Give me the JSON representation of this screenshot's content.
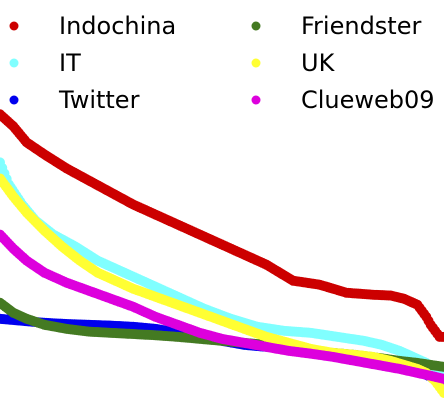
{
  "chart_data": {
    "type": "scatter",
    "title": "",
    "xlabel": "",
    "ylabel": "",
    "grid": false,
    "legend_placement": "top",
    "xlim": [
      0,
      100
    ],
    "ylim": [
      0,
      100
    ],
    "series": [
      {
        "name": "Indochina",
        "color": "#cc0000",
        "points": [
          [
            0,
            71.5
          ],
          [
            3,
            68.5
          ],
          [
            6,
            64.5
          ],
          [
            10,
            61.5
          ],
          [
            15,
            58
          ],
          [
            20,
            55
          ],
          [
            25,
            52
          ],
          [
            30,
            49
          ],
          [
            36,
            46
          ],
          [
            42,
            43
          ],
          [
            48,
            40
          ],
          [
            54,
            37
          ],
          [
            60,
            34
          ],
          [
            66,
            30
          ],
          [
            72,
            29
          ],
          [
            78,
            27
          ],
          [
            84,
            26.5
          ],
          [
            88,
            26.3
          ],
          [
            91,
            25.5
          ],
          [
            94,
            24
          ],
          [
            96,
            21
          ],
          [
            97,
            19
          ],
          [
            98,
            17.5
          ],
          [
            99,
            16
          ],
          [
            100,
            16
          ]
        ]
      },
      {
        "name": "IT",
        "color": "#80ffff",
        "points": [
          [
            0,
            59.5
          ],
          [
            2,
            54
          ],
          [
            5,
            49
          ],
          [
            8,
            45
          ],
          [
            12,
            41.5
          ],
          [
            17,
            38.5
          ],
          [
            22,
            35
          ],
          [
            28,
            32
          ],
          [
            34,
            29
          ],
          [
            40,
            26
          ],
          [
            46,
            23
          ],
          [
            52,
            20.5
          ],
          [
            58,
            18.5
          ],
          [
            64,
            17.5
          ],
          [
            70,
            17
          ],
          [
            76,
            16
          ],
          [
            82,
            15
          ],
          [
            86,
            14
          ],
          [
            90,
            12.5
          ],
          [
            93,
            11
          ],
          [
            96,
            9.5
          ],
          [
            98,
            8
          ],
          [
            100,
            7
          ]
        ]
      },
      {
        "name": "Twitter",
        "color": "#0000ee",
        "points": [
          [
            0,
            20.5
          ],
          [
            5,
            20
          ],
          [
            10,
            19.5
          ],
          [
            15,
            19.2
          ],
          [
            20,
            19
          ],
          [
            25,
            18.8
          ],
          [
            30,
            18.5
          ],
          [
            35,
            18
          ],
          [
            40,
            17
          ],
          [
            45,
            16
          ],
          [
            50,
            15
          ],
          [
            55,
            14
          ],
          [
            60,
            13.5
          ],
          [
            65,
            13
          ],
          [
            70,
            12.5
          ],
          [
            75,
            11.8
          ],
          [
            80,
            11
          ],
          [
            85,
            10
          ],
          [
            88,
            9
          ],
          [
            91,
            8
          ],
          [
            94,
            7.5
          ],
          [
            96,
            6.5
          ],
          [
            98,
            5.5
          ],
          [
            100,
            5
          ]
        ]
      },
      {
        "name": "Friendster",
        "color": "#447a22",
        "points": [
          [
            0,
            24.5
          ],
          [
            3,
            22
          ],
          [
            6,
            20.5
          ],
          [
            10,
            19
          ],
          [
            15,
            18
          ],
          [
            20,
            17.3
          ],
          [
            25,
            17
          ],
          [
            30,
            16.7
          ],
          [
            35,
            16.4
          ],
          [
            40,
            16
          ],
          [
            45,
            15.5
          ],
          [
            50,
            15
          ],
          [
            55,
            14.5
          ],
          [
            60,
            14
          ],
          [
            65,
            13.3
          ],
          [
            70,
            12.5
          ],
          [
            75,
            12
          ],
          [
            80,
            11.5
          ],
          [
            85,
            10.8
          ],
          [
            90,
            10
          ],
          [
            94,
            9.5
          ],
          [
            97,
            9
          ],
          [
            100,
            8.5
          ]
        ]
      },
      {
        "name": "UK",
        "color": "#ffff33",
        "points": [
          [
            0,
            55.5
          ],
          [
            3,
            51
          ],
          [
            6,
            47
          ],
          [
            10,
            42.5
          ],
          [
            14,
            38.5
          ],
          [
            18,
            35
          ],
          [
            22,
            32
          ],
          [
            26,
            30
          ],
          [
            30,
            28
          ],
          [
            35,
            26
          ],
          [
            40,
            24
          ],
          [
            45,
            22
          ],
          [
            50,
            20
          ],
          [
            55,
            18
          ],
          [
            60,
            16
          ],
          [
            65,
            14.5
          ],
          [
            70,
            13
          ],
          [
            75,
            12
          ],
          [
            80,
            11.5
          ],
          [
            84,
            11
          ],
          [
            88,
            10
          ],
          [
            91,
            9
          ],
          [
            94,
            8
          ],
          [
            96,
            7
          ],
          [
            98,
            5
          ],
          [
            100,
            2
          ]
        ]
      },
      {
        "name": "Clueweb09",
        "color": "#dd00dd",
        "points": [
          [
            0,
            41.5
          ],
          [
            3,
            38
          ],
          [
            6,
            35
          ],
          [
            10,
            32
          ],
          [
            15,
            29.5
          ],
          [
            20,
            27.5
          ],
          [
            25,
            25.5
          ],
          [
            30,
            23.5
          ],
          [
            35,
            21
          ],
          [
            40,
            19
          ],
          [
            45,
            17
          ],
          [
            50,
            15.5
          ],
          [
            55,
            14.5
          ],
          [
            60,
            13.5
          ],
          [
            65,
            12.5
          ],
          [
            70,
            11.8
          ],
          [
            75,
            11
          ],
          [
            80,
            10
          ],
          [
            85,
            9
          ],
          [
            90,
            8
          ],
          [
            94,
            7
          ],
          [
            97,
            6.3
          ],
          [
            100,
            5.5
          ]
        ]
      }
    ]
  }
}
